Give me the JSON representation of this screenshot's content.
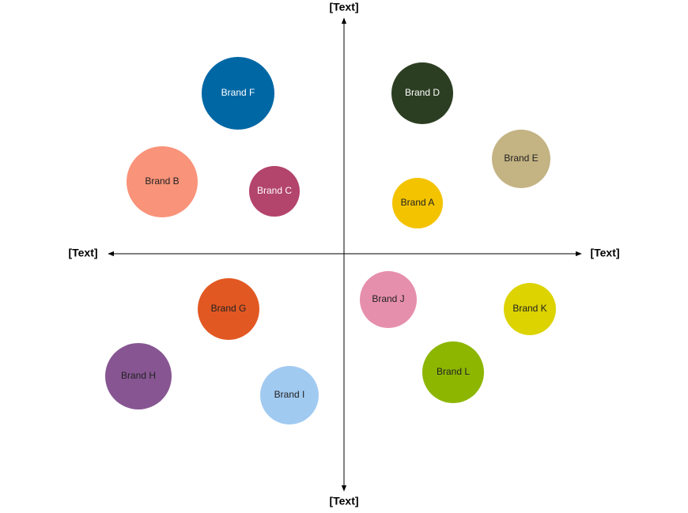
{
  "axes": {
    "top": "[Text]",
    "bottom": "[Text]",
    "left": "[Text]",
    "right": "[Text]"
  },
  "nodes": [
    {
      "label": "Brand F",
      "color": "#0067a5"
    },
    {
      "label": "Brand D",
      "color": "#2c3e22"
    },
    {
      "label": "Brand E",
      "color": "#c4b383"
    },
    {
      "label": "Brand B",
      "color": "#f99379"
    },
    {
      "label": "Brand C",
      "color": "#b3446c"
    },
    {
      "label": "Brand A",
      "color": "#f3c300"
    },
    {
      "label": "Brand G",
      "color": "#e25822"
    },
    {
      "label": "Brand J",
      "color": "#e68fac"
    },
    {
      "label": "Brand K",
      "color": "#dcd300"
    },
    {
      "label": "Brand H",
      "color": "#875692"
    },
    {
      "label": "Brand I",
      "color": "#a1caf1"
    },
    {
      "label": "Brand L",
      "color": "#8db600"
    }
  ]
}
